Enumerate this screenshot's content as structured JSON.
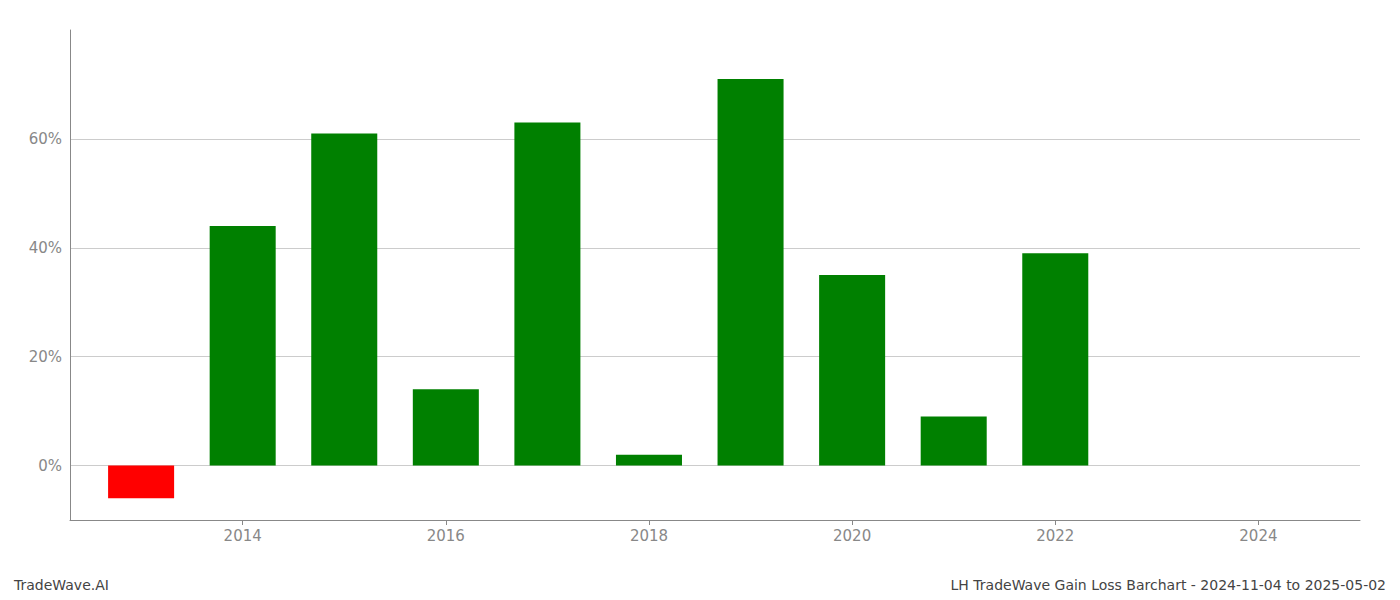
{
  "chart_data": {
    "type": "bar",
    "x": [
      2013,
      2014,
      2015,
      2016,
      2017,
      2018,
      2019,
      2020,
      2021,
      2022
    ],
    "values": [
      -0.06,
      0.44,
      0.61,
      0.14,
      0.63,
      0.02,
      0.71,
      0.35,
      0.09,
      0.39
    ],
    "colors": [
      "#ff0000",
      "#008000",
      "#008000",
      "#008000",
      "#008000",
      "#008000",
      "#008000",
      "#008000",
      "#008000",
      "#008000"
    ],
    "xlim": [
      2012.3,
      2025.0
    ],
    "xticks": [
      2014,
      2016,
      2018,
      2020,
      2022,
      2024
    ],
    "ylim": [
      -0.1,
      0.8
    ],
    "yticks": [
      {
        "value": 0.0,
        "label": "0%"
      },
      {
        "value": 0.2,
        "label": "20%"
      },
      {
        "value": 0.4,
        "label": "40%"
      },
      {
        "value": 0.6,
        "label": "60%"
      }
    ],
    "grid": true,
    "annotations": [
      "TradeWave.AI",
      "LH TradeWave Gain Loss Barchart - 2024-11-04 to 2025-05-02"
    ]
  }
}
